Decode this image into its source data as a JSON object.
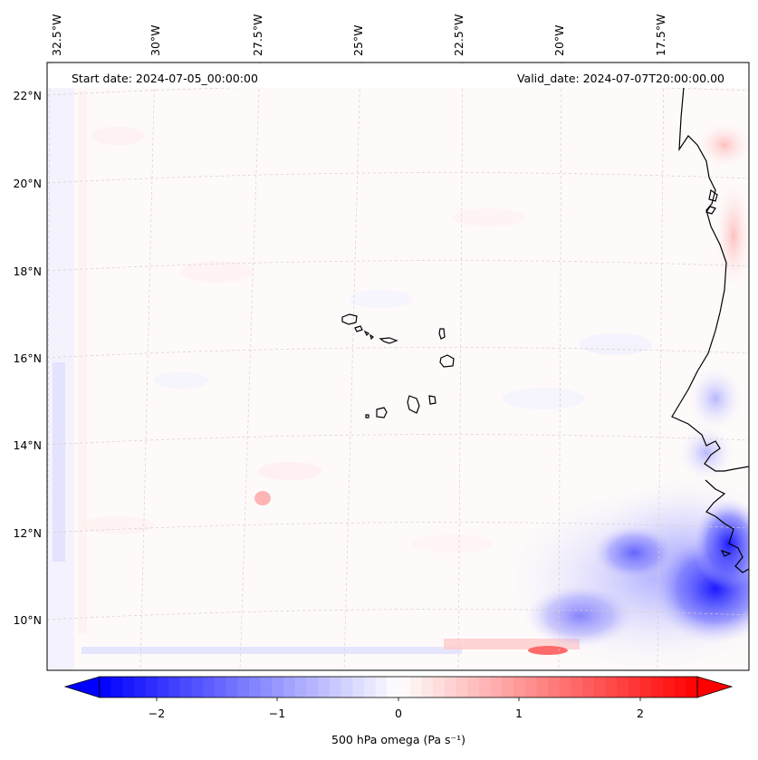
{
  "map": {
    "start_date": "Start date: 2024-07-05_00:00:00",
    "valid_date": "Valid_date: 2024-07-07T20:00:00.00",
    "longitude_labels": [
      "32.5°W",
      "30°W",
      "27.5°W",
      "25°W",
      "22.5°W",
      "20°W",
      "17.5°W"
    ],
    "latitude_labels": [
      "22°N",
      "20°N",
      "18°N",
      "16°N",
      "14°N",
      "12°N",
      "10°N"
    ],
    "variable": "500 hPa omega",
    "colorbar": {
      "label": "500 hPa omega (Pa s⁻¹)",
      "ticks": [
        "−2",
        "−1",
        "0",
        "1",
        "2"
      ],
      "min": -2.6,
      "max": 2.6,
      "cmap": "bwr",
      "low_color": "#0000ff",
      "mid_color": "#ffffff",
      "high_color": "#ff0000"
    },
    "colors": {
      "coastline": "#000000",
      "gridline": "#d0c8c8"
    }
  }
}
